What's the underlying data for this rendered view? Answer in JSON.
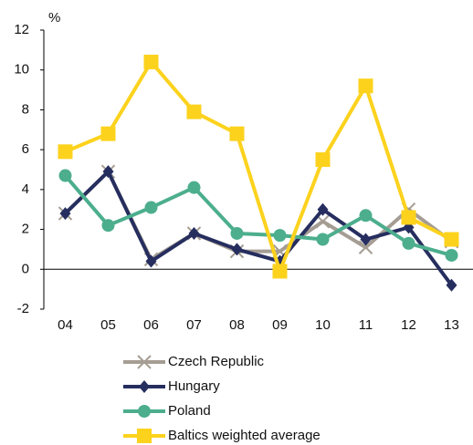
{
  "chart_data": {
    "type": "line",
    "y_label": "%",
    "categories": [
      "04",
      "05",
      "06",
      "07",
      "08",
      "09",
      "10",
      "11",
      "12",
      "13"
    ],
    "ylim": [
      -2,
      12
    ],
    "yticks": [
      -2,
      0,
      2,
      4,
      6,
      8,
      10,
      12
    ],
    "series": [
      {
        "name": "Czech Republic",
        "color": "#a59d93",
        "marker": "x",
        "values": [
          2.8,
          4.9,
          0.5,
          1.8,
          0.9,
          0.9,
          2.4,
          1.1,
          3.0,
          1.4
        ]
      },
      {
        "name": "Hungary",
        "color": "#262e5f",
        "marker": "diamond",
        "values": [
          2.8,
          4.9,
          0.4,
          1.8,
          1.0,
          0.4,
          3.0,
          1.5,
          2.1,
          -0.8
        ]
      },
      {
        "name": "Poland",
        "color": "#4cae8d",
        "marker": "circle",
        "values": [
          4.7,
          2.2,
          3.1,
          4.1,
          1.8,
          1.7,
          1.5,
          2.7,
          1.3,
          0.7
        ]
      },
      {
        "name": "Baltics weighted average",
        "color": "#fcd21d",
        "marker": "square",
        "values": [
          5.9,
          6.8,
          10.4,
          7.9,
          6.8,
          -0.1,
          5.5,
          9.2,
          2.6,
          1.5
        ]
      }
    ]
  }
}
